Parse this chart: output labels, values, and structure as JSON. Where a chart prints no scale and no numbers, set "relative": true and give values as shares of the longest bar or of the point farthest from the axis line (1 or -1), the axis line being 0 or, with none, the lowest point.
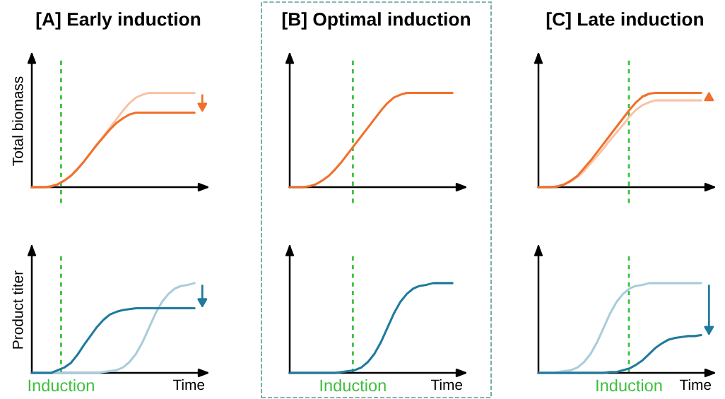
{
  "chart_data": [
    {
      "type": "line",
      "relative": true,
      "title": "[A] Early induction",
      "ylabel": "Total biomass",
      "categories": [
        null,
        null,
        null,
        null,
        null,
        null,
        null,
        null,
        null,
        null,
        null,
        null,
        null,
        null,
        null,
        null,
        null,
        null,
        null,
        null,
        null,
        null,
        null,
        null,
        null,
        null
      ],
      "series": [
        {
          "color": "#f9c3a6",
          "values": [
            0,
            0,
            0,
            0.01,
            0.03,
            0.07,
            0.12,
            0.19,
            0.27,
            0.36,
            0.45,
            0.54,
            0.63,
            0.72,
            0.81,
            0.89,
            0.95,
            0.98,
            1,
            1,
            1,
            1,
            1,
            1,
            1,
            1
          ]
        },
        {
          "color": "#f0702b",
          "values": [
            0,
            0,
            0,
            0.01,
            0.03,
            0.07,
            0.12,
            0.19,
            0.27,
            0.36,
            0.45,
            0.53,
            0.61,
            0.68,
            0.73,
            0.77,
            0.79,
            0.79,
            0.79,
            0.79,
            0.79,
            0.79,
            0.79,
            0.79,
            0.79,
            0.79
          ]
        }
      ]
    },
    {
      "type": "line",
      "relative": true,
      "title": "[B] Optimal induction",
      "categories": [
        null,
        null,
        null,
        null,
        null,
        null,
        null,
        null,
        null,
        null,
        null,
        null,
        null,
        null,
        null,
        null,
        null,
        null,
        null,
        null,
        null,
        null,
        null,
        null,
        null,
        null
      ],
      "series": [
        {
          "color": "#f0702b",
          "values": [
            0,
            0,
            0,
            0.01,
            0.03,
            0.07,
            0.12,
            0.19,
            0.27,
            0.36,
            0.45,
            0.54,
            0.63,
            0.72,
            0.81,
            0.89,
            0.95,
            0.98,
            1,
            1,
            1,
            1,
            1,
            1,
            1,
            1
          ]
        }
      ]
    },
    {
      "type": "line",
      "relative": true,
      "title": "[C] Late induction",
      "categories": [
        null,
        null,
        null,
        null,
        null,
        null,
        null,
        null,
        null,
        null,
        null,
        null,
        null,
        null,
        null,
        null,
        null,
        null,
        null,
        null,
        null,
        null,
        null,
        null,
        null,
        null
      ],
      "series": [
        {
          "color": "#f9c3a6",
          "values": [
            0,
            0,
            0,
            0.01,
            0.03,
            0.06,
            0.11,
            0.17,
            0.25,
            0.33,
            0.41,
            0.5,
            0.58,
            0.66,
            0.75,
            0.82,
            0.87,
            0.9,
            0.92,
            0.92,
            0.92,
            0.92,
            0.92,
            0.92,
            0.92,
            0.92
          ]
        },
        {
          "color": "#f0702b",
          "values": [
            0,
            0,
            0,
            0.01,
            0.03,
            0.07,
            0.12,
            0.2,
            0.28,
            0.37,
            0.46,
            0.55,
            0.64,
            0.73,
            0.82,
            0.9,
            0.96,
            0.99,
            1,
            1,
            1,
            1,
            1,
            1,
            1,
            1
          ]
        }
      ]
    },
    {
      "type": "line",
      "relative": true,
      "ylabel": "Product titer",
      "xlabel": "Time",
      "annotations": [
        "Induction"
      ],
      "categories": [
        null,
        null,
        null,
        null,
        null,
        null,
        null,
        null,
        null,
        null,
        null,
        null,
        null,
        null,
        null,
        null,
        null,
        null,
        null,
        null,
        null,
        null,
        null,
        null,
        null,
        null
      ],
      "series": [
        {
          "color": "#a9cddb",
          "values": [
            0,
            0,
            0,
            0,
            0,
            0,
            0,
            0,
            0,
            0,
            0,
            0.01,
            0.02,
            0.03,
            0.06,
            0.12,
            0.21,
            0.34,
            0.5,
            0.66,
            0.79,
            0.88,
            0.94,
            0.97,
            0.98,
            1
          ]
        },
        {
          "color": "#1f7a9e",
          "values": [
            0,
            0,
            0,
            0,
            0.03,
            0.06,
            0.11,
            0.2,
            0.31,
            0.41,
            0.51,
            0.59,
            0.65,
            0.68,
            0.7,
            0.71,
            0.72,
            0.72,
            0.72,
            0.72,
            0.72,
            0.72,
            0.72,
            0.72,
            0.72,
            0.72
          ]
        }
      ]
    },
    {
      "type": "line",
      "relative": true,
      "xlabel": "Time",
      "annotations": [
        "Induction"
      ],
      "categories": [
        null,
        null,
        null,
        null,
        null,
        null,
        null,
        null,
        null,
        null,
        null,
        null,
        null,
        null,
        null,
        null,
        null,
        null,
        null,
        null,
        null,
        null,
        null,
        null,
        null,
        null
      ],
      "series": [
        {
          "color": "#1f7a9e",
          "values": [
            0,
            0,
            0,
            0,
            0,
            0,
            0,
            0,
            0.01,
            0.02,
            0.03,
            0.06,
            0.12,
            0.21,
            0.34,
            0.5,
            0.66,
            0.79,
            0.88,
            0.94,
            0.97,
            0.98,
            1,
            1,
            1,
            1
          ]
        }
      ]
    },
    {
      "type": "line",
      "relative": true,
      "xlabel": "Time",
      "annotations": [
        "Induction"
      ],
      "categories": [
        null,
        null,
        null,
        null,
        null,
        null,
        null,
        null,
        null,
        null,
        null,
        null,
        null,
        null,
        null,
        null,
        null,
        null,
        null,
        null,
        null,
        null,
        null,
        null,
        null,
        null
      ],
      "series": [
        {
          "color": "#a9cddb",
          "values": [
            0,
            0,
            0,
            0.01,
            0.02,
            0.03,
            0.06,
            0.12,
            0.21,
            0.34,
            0.5,
            0.66,
            0.79,
            0.88,
            0.94,
            0.97,
            0.98,
            1,
            1,
            1,
            1,
            1,
            1,
            1,
            1,
            1
          ]
        },
        {
          "color": "#1f7a9e",
          "values": [
            0,
            0,
            0,
            0,
            0,
            0,
            0,
            0,
            0,
            0,
            0,
            0.01,
            0.01,
            0.03,
            0.05,
            0.09,
            0.14,
            0.21,
            0.28,
            0.33,
            0.37,
            0.39,
            0.4,
            0.41,
            0.41,
            0.42
          ]
        }
      ]
    }
  ]
}
